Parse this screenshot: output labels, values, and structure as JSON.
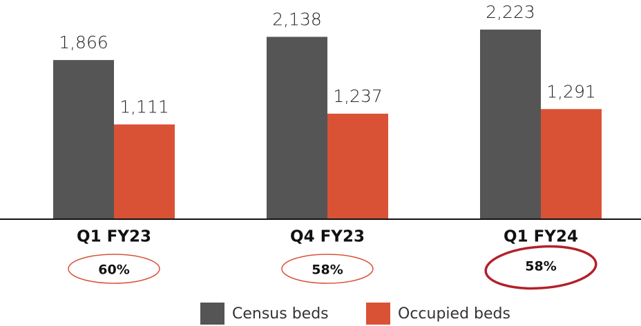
{
  "chart_data": {
    "type": "bar",
    "categories": [
      "Q1 FY23",
      "Q4 FY23",
      "Q1 FY24"
    ],
    "series": [
      {
        "name": "Census beds",
        "color": "#555555",
        "values": [
          1866,
          2138,
          2223
        ],
        "value_labels": [
          "1,866",
          "2,138",
          "2,223"
        ]
      },
      {
        "name": "Occupied beds",
        "color": "#d95236",
        "values": [
          1111,
          1237,
          1291
        ],
        "value_labels": [
          "1,111",
          "1,237",
          "1,291"
        ]
      }
    ],
    "occupancy": [
      {
        "value": 60,
        "label": "60%"
      },
      {
        "value": 58,
        "label": "58%"
      },
      {
        "value": 58,
        "label": "58%"
      }
    ],
    "ylim": [
      0,
      2570
    ],
    "legend": "bottom"
  }
}
